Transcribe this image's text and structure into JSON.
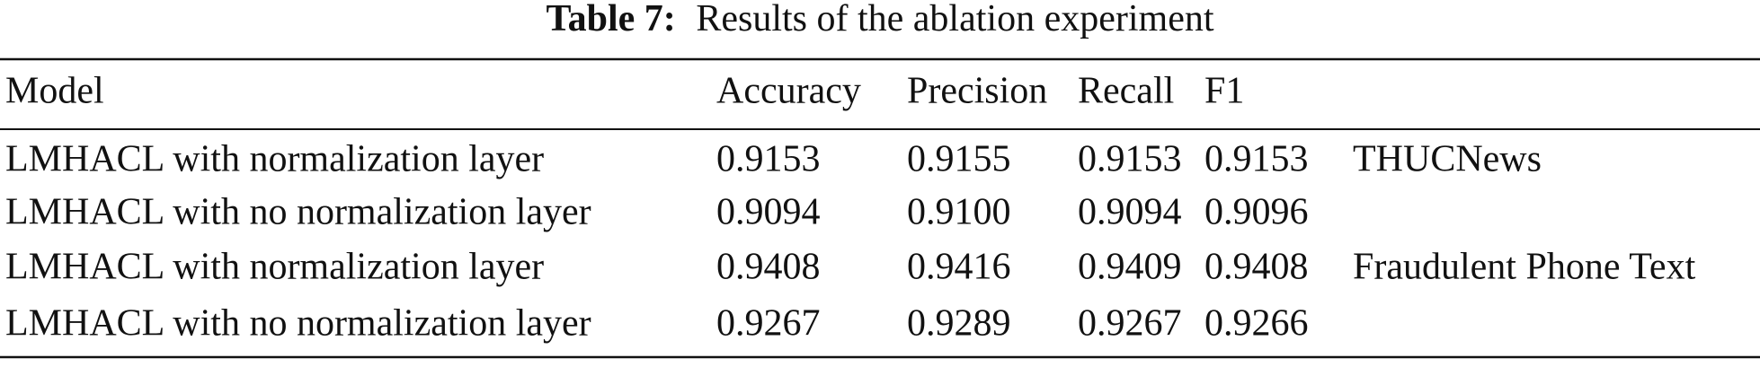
{
  "table": {
    "caption_label": "Table 7:",
    "caption_text": "Results of the ablation experiment",
    "header": [
      "Model",
      "Accuracy",
      "Precision",
      "Recall",
      "F1"
    ],
    "rows": [
      [
        "LMHACL with normalization layer",
        "0.9153",
        "0.9155",
        "0.9153",
        "0.9153",
        "THUCNews"
      ],
      [
        "LMHACL with no normalization layer",
        "0.9094",
        "0.9100",
        "0.9094",
        "0.9096"
      ],
      [
        "LMHACL with normalization layer",
        "0.9408",
        "0.9416",
        "0.9409",
        "0.9408",
        "Fraudulent Phone Text"
      ],
      [
        "LMHACL with no normalization layer",
        "0.9267",
        "0.9289",
        "0.9267",
        "0.9266"
      ]
    ]
  }
}
